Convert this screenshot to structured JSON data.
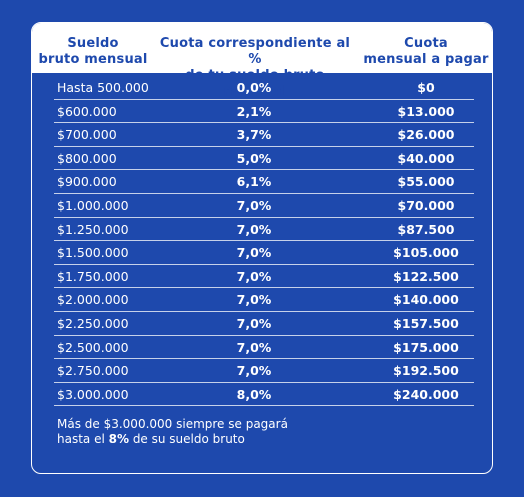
{
  "header": {
    "col1_line1": "Sueldo",
    "col1_line2": "bruto mensual",
    "col2_line1": "Cuota correspondiente al %",
    "col2_line2": "de tu sueldo bruto mensual",
    "col3_line1": "Cuota",
    "col3_line2": "mensual a pagar"
  },
  "rows": [
    {
      "salary": "Hasta 500.000",
      "percent": "0,0%",
      "fee": "$0"
    },
    {
      "salary": "$600.000",
      "percent": "2,1%",
      "fee": "$13.000"
    },
    {
      "salary": "$700.000",
      "percent": "3,7%",
      "fee": "$26.000"
    },
    {
      "salary": "$800.000",
      "percent": "5,0%",
      "fee": "$40.000"
    },
    {
      "salary": "$900.000",
      "percent": "6,1%",
      "fee": "$55.000"
    },
    {
      "salary": "$1.000.000",
      "percent": "7,0%",
      "fee": "$70.000"
    },
    {
      "salary": "$1.250.000",
      "percent": "7,0%",
      "fee": "$87.500"
    },
    {
      "salary": "$1.500.000",
      "percent": "7,0%",
      "fee": "$105.000"
    },
    {
      "salary": "$1.750.000",
      "percent": "7,0%",
      "fee": "$122.500"
    },
    {
      "salary": "$2.000.000",
      "percent": "7,0%",
      "fee": "$140.000"
    },
    {
      "salary": "$2.250.000",
      "percent": "7,0%",
      "fee": "$157.500"
    },
    {
      "salary": "$2.500.000",
      "percent": "7,0%",
      "fee": "$175.000"
    },
    {
      "salary": "$2.750.000",
      "percent": "7,0%",
      "fee": "$192.500"
    },
    {
      "salary": "$3.000.000",
      "percent": "8,0%",
      "fee": "$240.000"
    }
  ],
  "note": {
    "line1": "Más de $3.000.000 siempre se pagará",
    "line2_prefix": "hasta el ",
    "line2_bold": "8%",
    "line2_suffix": " de su sueldo bruto"
  }
}
